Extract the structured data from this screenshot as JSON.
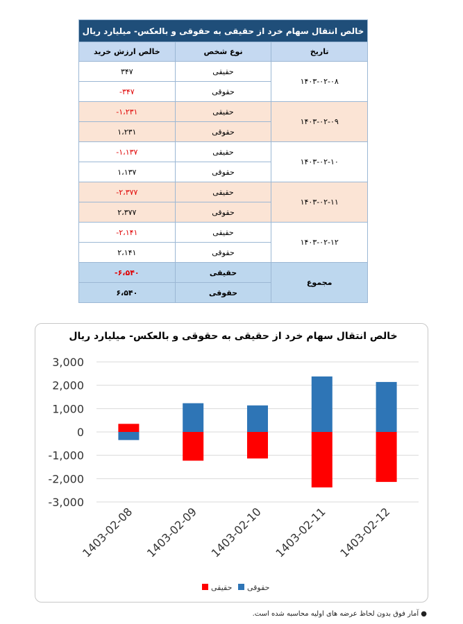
{
  "table": {
    "title": "خالص انتقال سهام خرد از حقیقی به حقوقی و بالعکس- میلیارد ریال",
    "columns": [
      "تاریخ",
      "نوع شخص",
      "خالص ارزش خرید"
    ],
    "groups": [
      {
        "date": "۱۴۰۳-۰۲-۰۸",
        "rows": [
          {
            "type": "حقیقی",
            "value": "۳۴۷"
          },
          {
            "type": "حقوقی",
            "value": "-۳۴۷"
          }
        ]
      },
      {
        "date": "۱۴۰۳-۰۲-۰۹",
        "rows": [
          {
            "type": "حقیقی",
            "value": "-۱،۲۳۱"
          },
          {
            "type": "حقوقی",
            "value": "۱،۲۳۱"
          }
        ]
      },
      {
        "date": "۱۴۰۳-۰۲-۱۰",
        "rows": [
          {
            "type": "حقیقی",
            "value": "-۱،۱۳۷"
          },
          {
            "type": "حقوقی",
            "value": "۱،۱۳۷"
          }
        ]
      },
      {
        "date": "۱۴۰۳-۰۲-۱۱",
        "rows": [
          {
            "type": "حقیقی",
            "value": "-۲،۳۷۷"
          },
          {
            "type": "حقوقی",
            "value": "۲،۳۷۷"
          }
        ]
      },
      {
        "date": "۱۴۰۳-۰۲-۱۲",
        "rows": [
          {
            "type": "حقیقی",
            "value": "-۲،۱۴۱"
          },
          {
            "type": "حقوقی",
            "value": "۲،۱۴۱"
          }
        ]
      }
    ],
    "total": {
      "date": "مجموع",
      "rows": [
        {
          "type": "حقیقی",
          "value": "-۶،۵۴۰"
        },
        {
          "type": "حقوقی",
          "value": "۶،۵۴۰"
        }
      ]
    }
  },
  "chart_data": {
    "type": "bar",
    "title": "خالص انتقال سهام خرد از حقیقی به حقوقی و بالعکس- میلیارد ریال",
    "categories": [
      "1403-02-08",
      "1403-02-09",
      "1403-02-10",
      "1403-02-11",
      "1403-02-12"
    ],
    "series": [
      {
        "name": "حقیقی",
        "color": "#ff0000",
        "values": [
          347,
          -1231,
          -1137,
          -2377,
          -2141
        ]
      },
      {
        "name": "حقوقی",
        "color": "#2e75b6",
        "values": [
          -347,
          1231,
          1137,
          2377,
          2141
        ]
      }
    ],
    "ylim": [
      -3000,
      3000
    ],
    "yticks": [
      {
        "value": -3000,
        "label": "-3,000"
      },
      {
        "value": -2000,
        "label": "-2,000"
      },
      {
        "value": -1000,
        "label": "-1,000"
      },
      0,
      {
        "value": 1000,
        "label": "1,000"
      },
      {
        "value": 2000,
        "label": "2,000"
      },
      {
        "value": 3000,
        "label": "3,000"
      }
    ],
    "grid": true,
    "legend": "bottom"
  },
  "footnote": "آمار فوق بدون لحاظ عرضه های اولیه محاسبه شده است."
}
